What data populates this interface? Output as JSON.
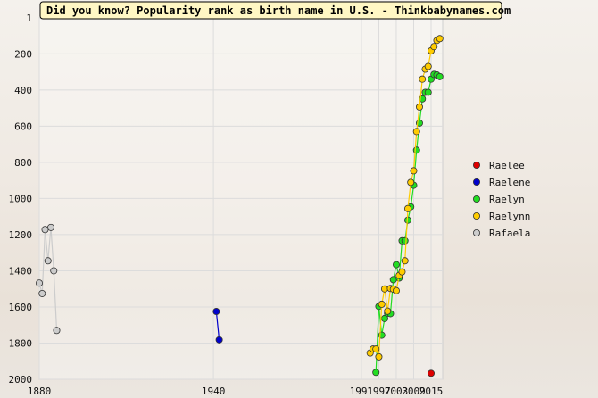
{
  "chart_data": {
    "type": "line",
    "title": "Did you know? Popularity rank as birth name in U.S. - Thinkbabynames.com",
    "xlabel": "",
    "ylabel": "",
    "xlim": [
      1880,
      2019
    ],
    "ylim": [
      2000,
      1
    ],
    "y_reversed": true,
    "x_ticks": [
      1880,
      1940,
      1991,
      1997,
      2003,
      2009,
      2015
    ],
    "y_ticks": [
      1,
      200,
      400,
      600,
      800,
      1000,
      1200,
      1400,
      1600,
      1800,
      2000
    ],
    "grid": true,
    "legend_position": "right",
    "series": [
      {
        "name": "Raelee",
        "color": "#dd0000",
        "points": [
          [
            2015,
            1967
          ]
        ]
      },
      {
        "name": "Raelene",
        "color": "#0000cc",
        "points": [
          [
            1941,
            1625
          ],
          [
            1942,
            1782
          ]
        ]
      },
      {
        "name": "Raelyn",
        "color": "#22dd22",
        "points": [
          [
            1996,
            1962
          ],
          [
            1997,
            1597
          ],
          [
            1998,
            1756
          ],
          [
            1999,
            1664
          ],
          [
            2000,
            1635
          ],
          [
            2001,
            1637
          ],
          [
            2002,
            1449
          ],
          [
            2003,
            1366
          ],
          [
            2004,
            1440
          ],
          [
            2005,
            1234
          ],
          [
            2006,
            1234
          ],
          [
            2007,
            1120
          ],
          [
            2008,
            1046
          ],
          [
            2009,
            927
          ],
          [
            2010,
            733
          ],
          [
            2011,
            583
          ],
          [
            2012,
            449
          ],
          [
            2013,
            413
          ],
          [
            2014,
            413
          ],
          [
            2015,
            340
          ],
          [
            2016,
            314
          ],
          [
            2017,
            317
          ],
          [
            2018,
            326
          ]
        ]
      },
      {
        "name": "Raelynn",
        "color": "#ffcc00",
        "points": [
          [
            1994,
            1855
          ],
          [
            1995,
            1833
          ],
          [
            1996,
            1833
          ],
          [
            1997,
            1876
          ],
          [
            1998,
            1585
          ],
          [
            1999,
            1500
          ],
          [
            2000,
            1623
          ],
          [
            2001,
            1498
          ],
          [
            2002,
            1502
          ],
          [
            2003,
            1510
          ],
          [
            2004,
            1426
          ],
          [
            2005,
            1406
          ],
          [
            2006,
            1345
          ],
          [
            2007,
            1056
          ],
          [
            2008,
            911
          ],
          [
            2009,
            847
          ],
          [
            2010,
            630
          ],
          [
            2011,
            494
          ],
          [
            2012,
            340
          ],
          [
            2013,
            285
          ],
          [
            2014,
            270
          ],
          [
            2015,
            183
          ],
          [
            2016,
            160
          ],
          [
            2017,
            126
          ],
          [
            2018,
            116
          ]
        ]
      },
      {
        "name": "Rafaela",
        "color": "#cccccc",
        "points": [
          [
            1880,
            1468
          ],
          [
            1881,
            1526
          ],
          [
            1882,
            1172
          ],
          [
            1883,
            1345
          ],
          [
            1884,
            1160
          ],
          [
            1885,
            1400
          ],
          [
            1886,
            1730
          ]
        ]
      }
    ]
  }
}
